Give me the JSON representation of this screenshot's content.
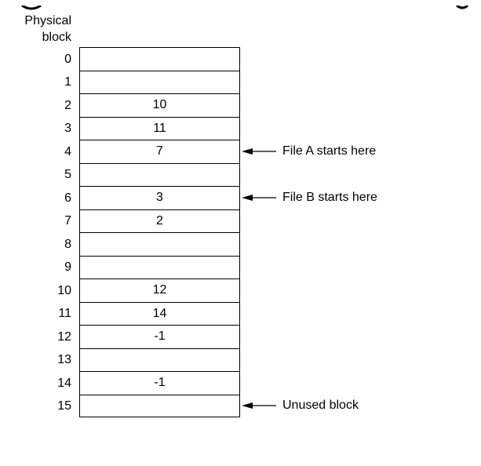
{
  "header": {
    "line1": "Physical",
    "line2": "block"
  },
  "rows": [
    {
      "index": "0",
      "value": ""
    },
    {
      "index": "1",
      "value": ""
    },
    {
      "index": "2",
      "value": "10"
    },
    {
      "index": "3",
      "value": "11"
    },
    {
      "index": "4",
      "value": "7"
    },
    {
      "index": "5",
      "value": ""
    },
    {
      "index": "6",
      "value": "3"
    },
    {
      "index": "7",
      "value": "2"
    },
    {
      "index": "8",
      "value": ""
    },
    {
      "index": "9",
      "value": ""
    },
    {
      "index": "10",
      "value": "12"
    },
    {
      "index": "11",
      "value": "14"
    },
    {
      "index": "12",
      "value": "-1"
    },
    {
      "index": "13",
      "value": ""
    },
    {
      "index": "14",
      "value": "-1"
    },
    {
      "index": "15",
      "value": ""
    }
  ],
  "annotations": [
    {
      "row": 4,
      "label": "File A starts here"
    },
    {
      "row": 6,
      "label": "File B starts here"
    },
    {
      "row": 15,
      "label": "Unused block"
    }
  ]
}
